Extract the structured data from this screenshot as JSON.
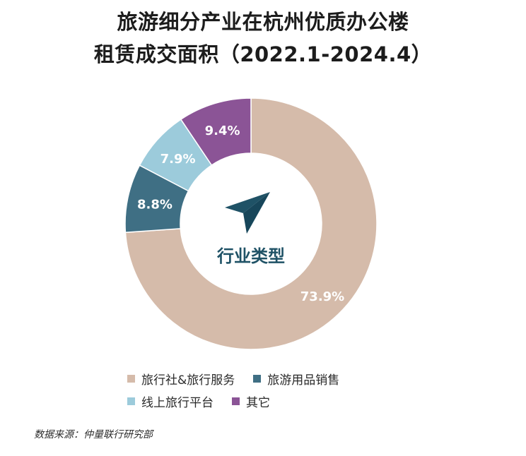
{
  "chart_data": {
    "type": "pie",
    "variant": "donut",
    "title": "旅游细分产业在杭州优质办公楼",
    "subtitle": "租赁成交面积（2022.1-2024.4）",
    "center_label": "行业类型",
    "center_icon": "paper-plane-icon",
    "categories": [
      "旅行社&旅行服务",
      "旅游用品销售",
      "线上旅行平台",
      "其它"
    ],
    "values": [
      73.9,
      8.8,
      7.9,
      9.4
    ],
    "value_labels": [
      "73.9%",
      "8.8%",
      "7.9%",
      "9.4%"
    ],
    "colors": [
      "#D5BBAA",
      "#3F6F84",
      "#9CCBDB",
      "#8B5496"
    ],
    "label_colors": [
      "#ffffff",
      "#ffffff",
      "#ffffff",
      "#ffffff"
    ],
    "legend_position": "bottom",
    "legend": [
      [
        "旅行社&旅行服务",
        "旅游用品销售"
      ],
      [
        "线上旅行平台",
        "其它"
      ]
    ]
  },
  "footer": {
    "source": "数据来源：仲量联行研究部"
  }
}
